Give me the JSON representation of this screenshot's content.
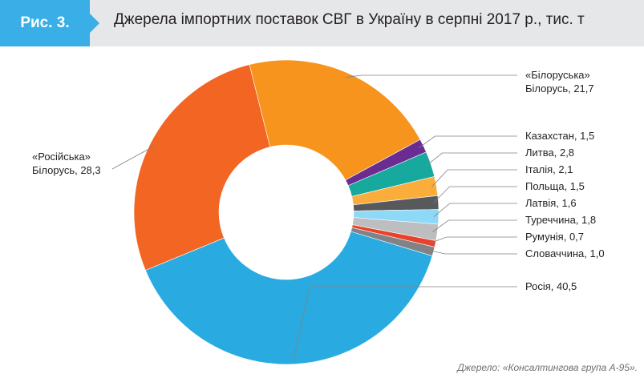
{
  "header": {
    "figure_label": "Рис. 3.",
    "title": "Джерела імпортних поставок СВГ в Україну в серпні 2017 р., тис. т"
  },
  "source": "Джерело: «Консалтингова група А-95».",
  "chart_data": {
    "type": "pie",
    "variant": "donut",
    "title": "Джерела імпортних поставок СВГ в Україну в серпні 2017 р., тис. т",
    "unit": "тис. т",
    "start_slice": "Білоруська",
    "slices": [
      {
        "label_line1": "«Білоруська»",
        "label_line2": "Білорусь, 21,7",
        "value": 21.7,
        "color": "#f7941d"
      },
      {
        "label_line1": "Казахстан, 1,5",
        "value": 1.5,
        "color": "#6a2c91"
      },
      {
        "label_line1": "Литва, 2,8",
        "value": 2.8,
        "color": "#17a99d"
      },
      {
        "label_line1": "Італія, 2,1",
        "value": 2.1,
        "color": "#fbad3c"
      },
      {
        "label_line1": "Польща, 1,5",
        "value": 1.5,
        "color": "#58595b"
      },
      {
        "label_line1": "Латвія, 1,6",
        "value": 1.6,
        "color": "#8ed8f8"
      },
      {
        "label_line1": "Туреччина, 1,8",
        "value": 1.8,
        "color": "#bcbec0"
      },
      {
        "label_line1": "Румунія, 0,7",
        "value": 0.7,
        "color": "#e8412c"
      },
      {
        "label_line1": "Словаччина, 1,0",
        "value": 1.0,
        "color": "#808285"
      },
      {
        "label_line1": "Росія, 40,5",
        "value": 40.5,
        "color": "#29abe2"
      },
      {
        "label_line1": "«Російська»",
        "label_line2": "Білорусь, 28,3",
        "value": 28.3,
        "color": "#f26522"
      }
    ]
  }
}
